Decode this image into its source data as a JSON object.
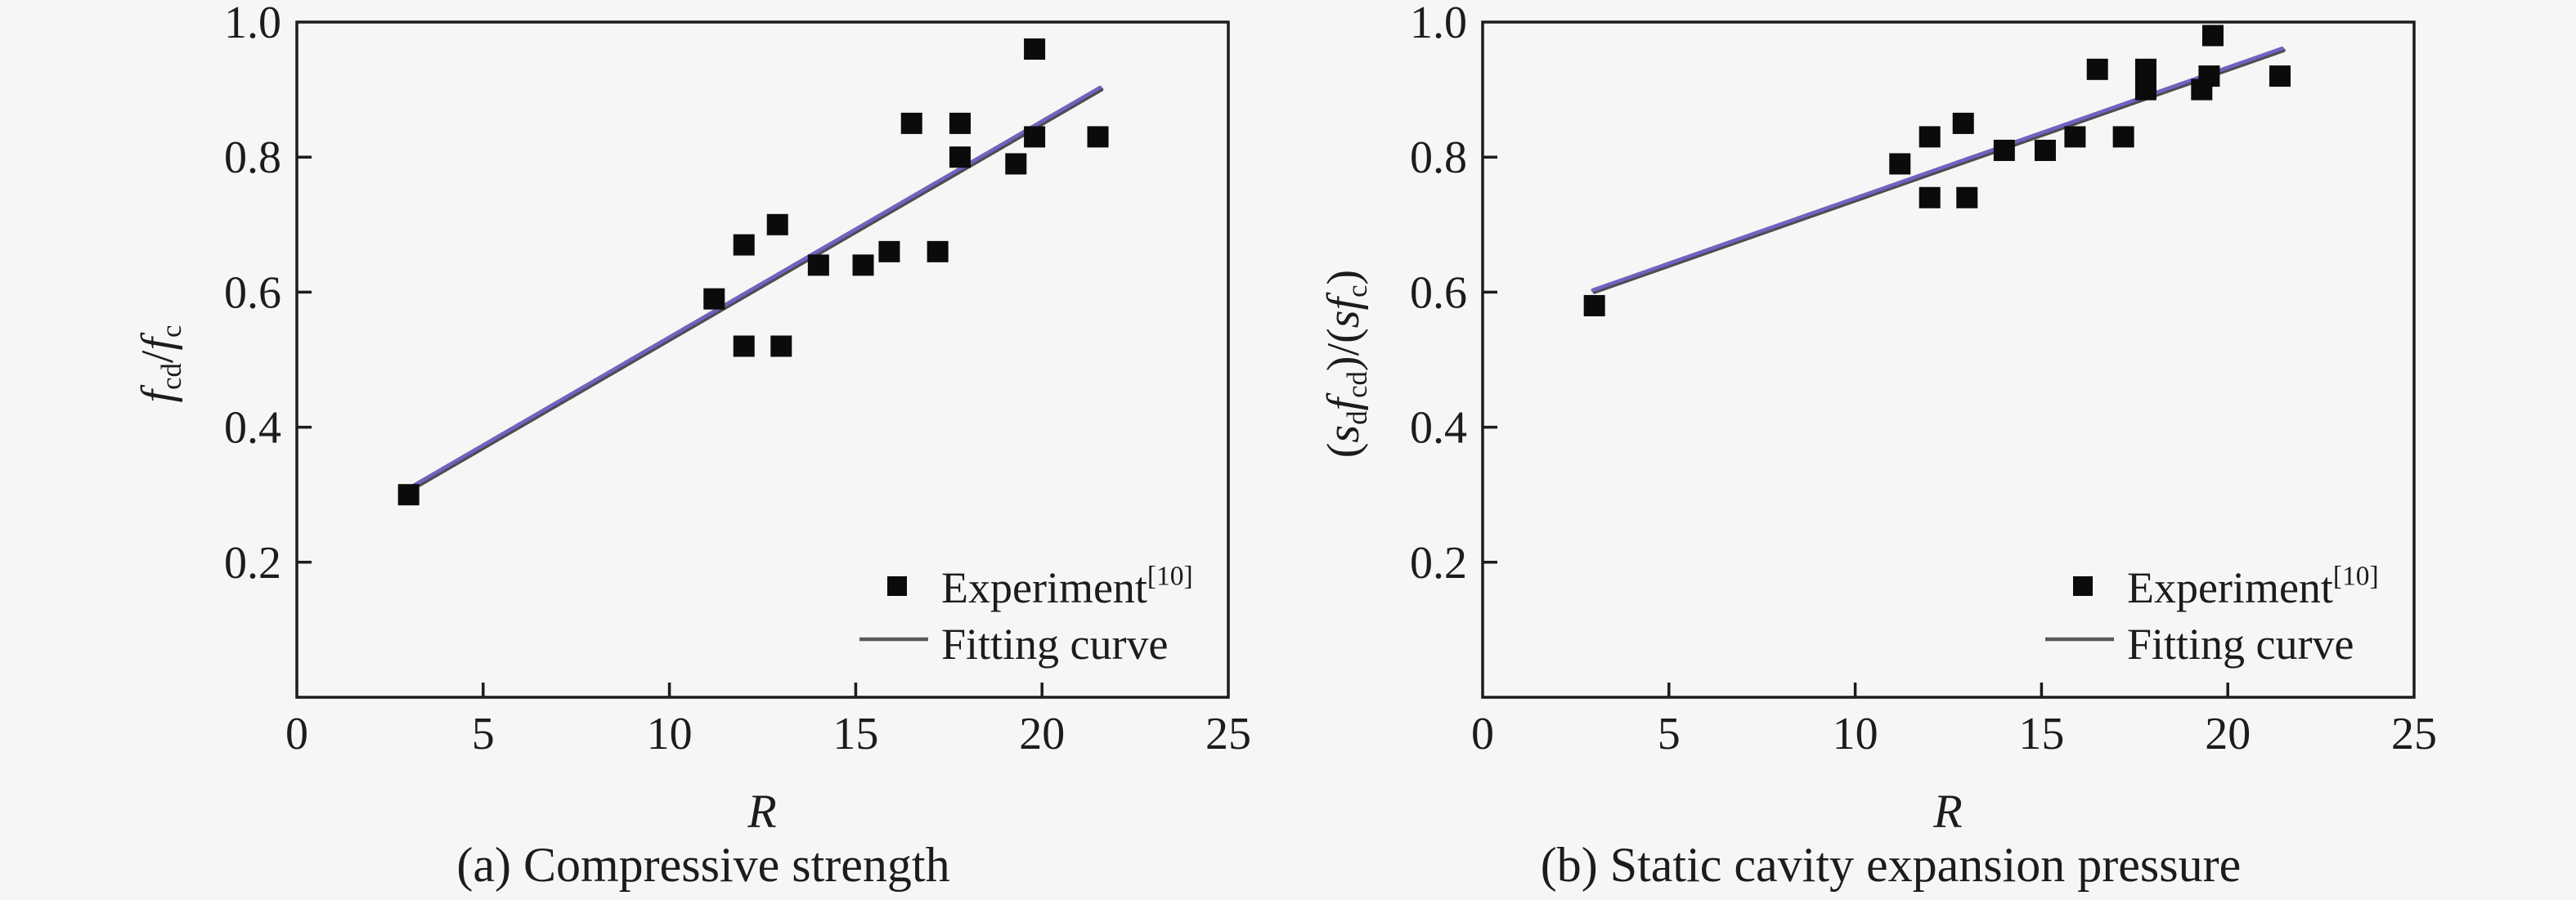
{
  "figure": {
    "background_color": "#f6f6f7",
    "axis_color": "#1c1c1c",
    "marker_color": "#0b0b0b",
    "fit_line_gray": "#4d4d4d",
    "fit_line_blue": "#6f63c2",
    "legend_line_color": "#5a5a5a"
  },
  "chart_data": [
    {
      "type": "scatter",
      "panel": "a",
      "caption": "(a) Compressive strength",
      "xlabel": "R",
      "ylabel_segments": [
        {
          "t": "f",
          "italic": true
        },
        {
          "t": "cd",
          "sub": true
        },
        {
          "t": "/"
        },
        {
          "t": "f",
          "italic": true
        },
        {
          "t": "c",
          "sub": true
        }
      ],
      "xlim": [
        0,
        25
      ],
      "ylim": [
        0,
        1.0
      ],
      "grid": false,
      "legend_position": "lower-right",
      "xticks": [
        {
          "v": 0,
          "label": "0"
        },
        {
          "v": 5,
          "label": "5"
        },
        {
          "v": 10,
          "label": "10"
        },
        {
          "v": 15,
          "label": "15"
        },
        {
          "v": 20,
          "label": "20"
        },
        {
          "v": 25,
          "label": "25"
        }
      ],
      "yticks": [
        {
          "v": 0.2,
          "label": "0.2"
        },
        {
          "v": 0.4,
          "label": "0.4"
        },
        {
          "v": 0.6,
          "label": "0.6"
        },
        {
          "v": 0.8,
          "label": "0.8"
        },
        {
          "v": 1.0,
          "label": "1.0"
        }
      ],
      "legend": {
        "experiment_segments": [
          {
            "t": "Experiment"
          },
          {
            "t": "[10]",
            "sup": true
          }
        ],
        "fit_segments": [
          {
            "t": "Fitting curve"
          }
        ]
      },
      "series": [
        {
          "name": "Experiment",
          "kind": "scatter",
          "points": [
            [
              3,
              0.3
            ],
            [
              11.2,
              0.59
            ],
            [
              12,
              0.52
            ],
            [
              12,
              0.67
            ],
            [
              12.9,
              0.7
            ],
            [
              13,
              0.52
            ],
            [
              14,
              0.64
            ],
            [
              15.2,
              0.64
            ],
            [
              15.9,
              0.66
            ],
            [
              16.5,
              0.85
            ],
            [
              17.2,
              0.66
            ],
            [
              17.8,
              0.8
            ],
            [
              17.8,
              0.85
            ],
            [
              19.3,
              0.79
            ],
            [
              19.8,
              0.83
            ],
            [
              19.8,
              0.96
            ],
            [
              21.5,
              0.83
            ]
          ]
        },
        {
          "name": "Fitting curve",
          "kind": "line",
          "points": [
            [
              3,
              0.305
            ],
            [
              21.6,
              0.9
            ]
          ]
        }
      ]
    },
    {
      "type": "scatter",
      "panel": "b",
      "caption": "(b) Static cavity expansion pressure",
      "xlabel": "R",
      "ylabel_segments": [
        {
          "t": "("
        },
        {
          "t": "s",
          "italic": true
        },
        {
          "t": "d",
          "sub": true
        },
        {
          "t": "f",
          "italic": true
        },
        {
          "t": "cd",
          "sub": true
        },
        {
          "t": ")/("
        },
        {
          "t": "s",
          "italic": true
        },
        {
          "t": "f",
          "italic": true
        },
        {
          "t": "c",
          "sub": true
        },
        {
          "t": ")"
        }
      ],
      "xlim": [
        0,
        25
      ],
      "ylim": [
        0,
        1.0
      ],
      "grid": false,
      "legend_position": "lower-right",
      "xticks": [
        {
          "v": 0,
          "label": "0"
        },
        {
          "v": 5,
          "label": "5"
        },
        {
          "v": 10,
          "label": "10"
        },
        {
          "v": 15,
          "label": "15"
        },
        {
          "v": 20,
          "label": "20"
        },
        {
          "v": 25,
          "label": "25"
        }
      ],
      "yticks": [
        {
          "v": 0.2,
          "label": "0.2"
        },
        {
          "v": 0.4,
          "label": "0.4"
        },
        {
          "v": 0.6,
          "label": "0.6"
        },
        {
          "v": 0.8,
          "label": "0.8"
        },
        {
          "v": 1.0,
          "label": "1.0"
        }
      ],
      "legend": {
        "experiment_segments": [
          {
            "t": "Experiment"
          },
          {
            "t": "[10]",
            "sup": true
          }
        ],
        "fit_segments": [
          {
            "t": "Fitting curve"
          }
        ]
      },
      "series": [
        {
          "name": "Experiment",
          "kind": "scatter",
          "points": [
            [
              3,
              0.58
            ],
            [
              11.2,
              0.79
            ],
            [
              12,
              0.74
            ],
            [
              12,
              0.83
            ],
            [
              12.9,
              0.85
            ],
            [
              13,
              0.74
            ],
            [
              14,
              0.81
            ],
            [
              15.1,
              0.81
            ],
            [
              15.9,
              0.83
            ],
            [
              16.5,
              0.93
            ],
            [
              17.2,
              0.83
            ],
            [
              17.8,
              0.9
            ],
            [
              17.8,
              0.93
            ],
            [
              19.3,
              0.9
            ],
            [
              19.5,
              0.92
            ],
            [
              19.6,
              0.98
            ],
            [
              21.4,
              0.92
            ]
          ]
        },
        {
          "name": "Fitting curve",
          "kind": "line",
          "points": [
            [
              3,
              0.6
            ],
            [
              21.5,
              0.958
            ]
          ]
        }
      ]
    }
  ]
}
